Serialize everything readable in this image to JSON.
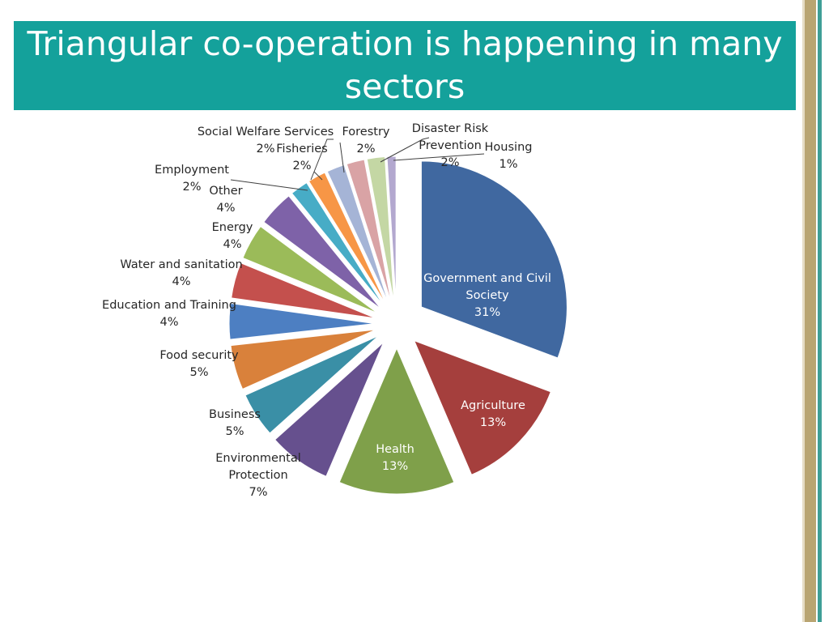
{
  "slide": {
    "title": "Triangular co-operation is happening in many sectors"
  },
  "colors": {
    "title_band": "#14a19b",
    "title_text": "#ffffff"
  },
  "chart_data": {
    "type": "pie",
    "title": "",
    "exploded": true,
    "slices": [
      {
        "name": "Government and Civil Society",
        "value": 31,
        "label": "31%",
        "color": "#4068a0"
      },
      {
        "name": "Agriculture",
        "value": 13,
        "label": "13%",
        "color": "#a53f3d"
      },
      {
        "name": "Health",
        "value": 13,
        "label": "13%",
        "color": "#7fa04a"
      },
      {
        "name": "Environmental Protection",
        "value": 7,
        "label": "7%",
        "color": "#66508e"
      },
      {
        "name": "Business",
        "value": 5,
        "label": "5%",
        "color": "#3a8fa6"
      },
      {
        "name": "Food security",
        "value": 5,
        "label": "5%",
        "color": "#d9813b"
      },
      {
        "name": "Education and Training",
        "value": 4,
        "label": "4%",
        "color": "#4d7fc2"
      },
      {
        "name": "Water and sanitation",
        "value": 4,
        "label": "4%",
        "color": "#c4504d"
      },
      {
        "name": "Energy",
        "value": 4,
        "label": "4%",
        "color": "#9bbb59"
      },
      {
        "name": "Other",
        "value": 4,
        "label": "4%",
        "color": "#7e62a8"
      },
      {
        "name": "Employment",
        "value": 2,
        "label": "2%",
        "color": "#47acc6"
      },
      {
        "name": "Social Welfare Services",
        "value": 2,
        "label": "2%",
        "color": "#f79646"
      },
      {
        "name": "Fisheries",
        "value": 2,
        "label": "2%",
        "color": "#a5b4d6"
      },
      {
        "name": "Forestry",
        "value": 2,
        "label": "2%",
        "color": "#d9a3a5"
      },
      {
        "name": "Disaster Risk Prevention",
        "value": 2,
        "label": "2%",
        "color": "#c4d7a4"
      },
      {
        "name": "Housing",
        "value": 1,
        "label": "1%",
        "color": "#b3a8cf"
      }
    ]
  }
}
